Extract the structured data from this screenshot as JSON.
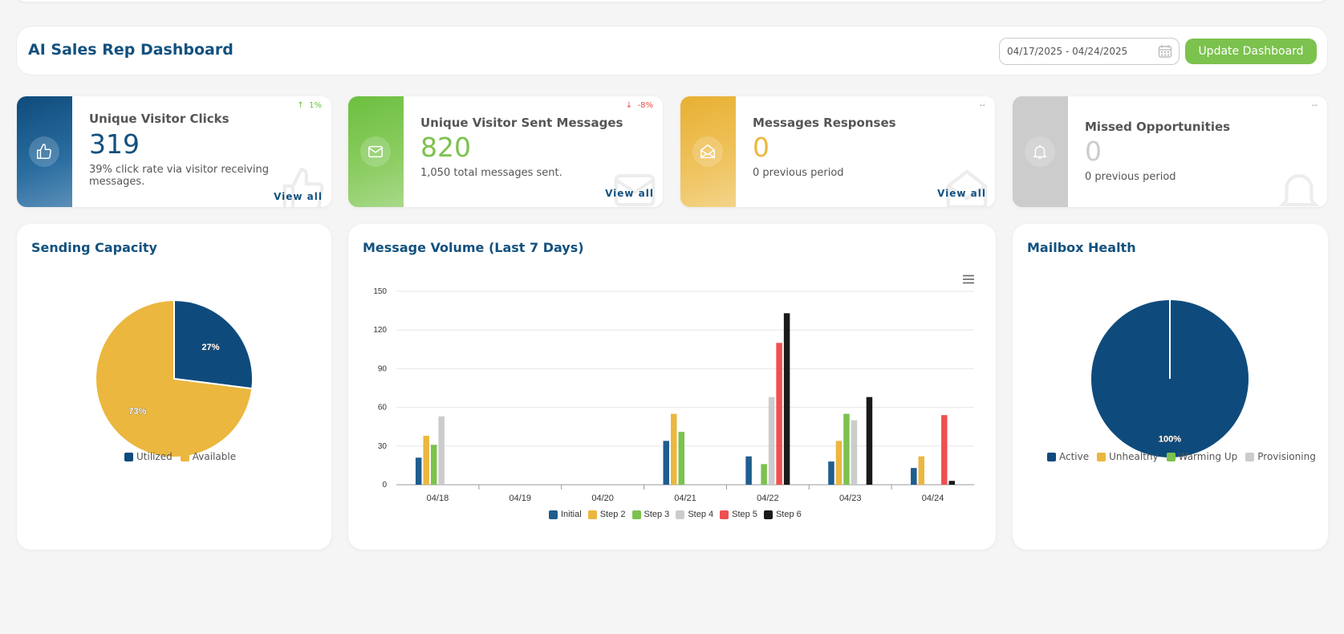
{
  "header": {
    "title": "AI Sales Rep Dashboard",
    "date_range": "04/17/2025 - 04/24/2025",
    "update_button": "Update Dashboard"
  },
  "cards": [
    {
      "title": "Unique Visitor Clicks",
      "value": "319",
      "sub": "39% click rate via visitor receiving messages.",
      "trend": "1%",
      "trend_dir": "up",
      "trend_color": "#6cbf3f",
      "view_all": "View all",
      "band_color": "#12517f",
      "value_color": "#12517f",
      "icon": "thumbs-up-icon"
    },
    {
      "title": "Unique Visitor Sent Messages",
      "value": "820",
      "sub": "1,050 total messages sent.",
      "trend": "-8%",
      "trend_dir": "down",
      "trend_color": "#e84c4c",
      "view_all": "View all",
      "band_color": "#7cc24e",
      "value_color": "#7cc24e",
      "icon": "envelope-icon"
    },
    {
      "title": "Messages Responses",
      "value": "0",
      "sub": "0 previous period",
      "trend": "--",
      "trend_dir": "none",
      "trend_color": "#888888",
      "view_all": "View all",
      "band_color": "#ebb73f",
      "value_color": "#ebb73f",
      "icon": "open-envelope-icon"
    },
    {
      "title": "Missed Opportunities",
      "value": "0",
      "sub": "0 previous period",
      "trend": "--",
      "trend_dir": "none",
      "trend_color": "#888888",
      "view_all": "",
      "band_color": "#cccccc",
      "value_color": "#cccccc",
      "icon": "bell-icon"
    }
  ],
  "panels": {
    "capacity_title": "Sending Capacity",
    "volume_title": "Message Volume (Last 7 Days)",
    "health_title": "Mailbox Health"
  },
  "chart_data": [
    {
      "type": "pie",
      "title": "Sending Capacity",
      "labels": [
        "Utilized",
        "Available"
      ],
      "values": [
        27,
        73
      ],
      "display_labels": [
        "27%",
        "73%"
      ],
      "colors": [
        "#0e4b7c",
        "#ebb73f"
      ],
      "legend": "bottom"
    },
    {
      "type": "bar",
      "title": "Message Volume (Last 7 Days)",
      "categories": [
        "04/18",
        "04/19",
        "04/20",
        "04/21",
        "04/22",
        "04/23",
        "04/24"
      ],
      "ylim": [
        0,
        150
      ],
      "yticks": [
        "0",
        "30",
        "60",
        "90",
        "120",
        "150"
      ],
      "grid": true,
      "legend": "bottom",
      "series": [
        {
          "name": "Initial",
          "color": "#1f5d8f",
          "values": [
            21,
            0,
            0,
            34,
            22,
            18,
            13
          ]
        },
        {
          "name": "Step 2",
          "color": "#ebb73f",
          "values": [
            38,
            0,
            0,
            55,
            0,
            34,
            22
          ]
        },
        {
          "name": "Step 3",
          "color": "#7cc24e",
          "values": [
            31,
            0,
            0,
            41,
            16,
            55,
            0
          ]
        },
        {
          "name": "Step 4",
          "color": "#cccccc",
          "values": [
            53,
            0,
            0,
            0,
            68,
            50,
            0
          ]
        },
        {
          "name": "Step 5",
          "color": "#ef5050",
          "values": [
            0,
            0,
            0,
            0,
            110,
            0,
            54
          ]
        },
        {
          "name": "Step 6",
          "color": "#1a1a1a",
          "values": [
            0,
            0,
            0,
            0,
            133,
            68,
            3
          ]
        }
      ]
    },
    {
      "type": "pie",
      "title": "Mailbox Health",
      "labels": [
        "Active",
        "Unhealthy",
        "Warming Up",
        "Provisioning"
      ],
      "values": [
        100,
        0,
        0,
        0
      ],
      "display_labels": [
        "100%",
        "",
        "",
        ""
      ],
      "colors": [
        "#0e4b7c",
        "#ebb73f",
        "#7cc24e",
        "#cccccc"
      ],
      "legend": "bottom"
    }
  ]
}
